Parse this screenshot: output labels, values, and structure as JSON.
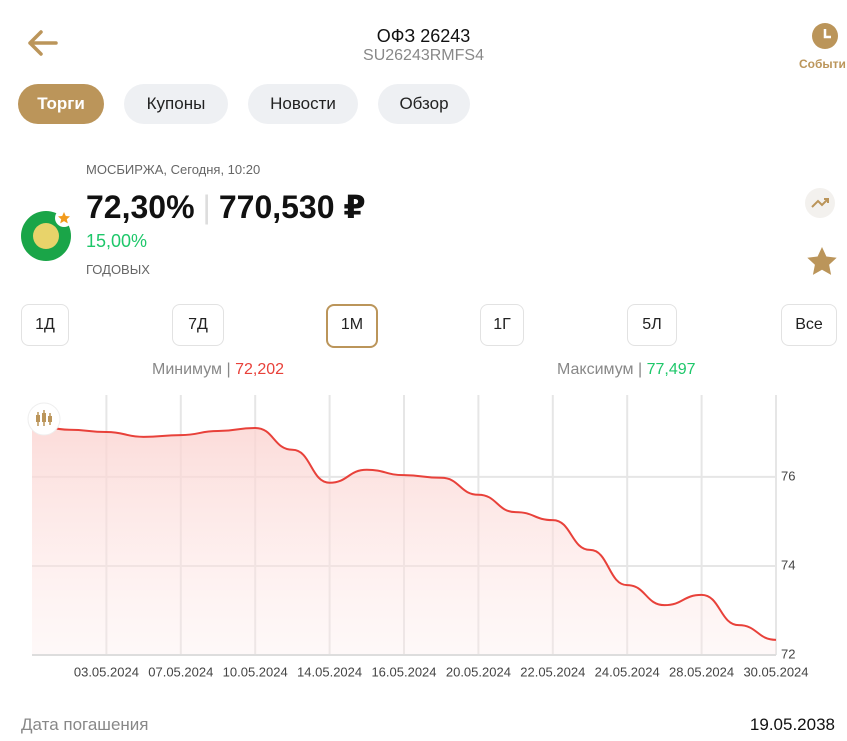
{
  "header": {
    "title": "ОФЗ 26243",
    "subtitle": "SU26243RMFS4",
    "events": "Событи"
  },
  "tabs": [
    "Торги",
    "Купоны",
    "Новости",
    "Обзор"
  ],
  "quote": {
    "source": "МОСБИРЖА, Сегодня, 10:20",
    "price_pct": "72,30%",
    "price_rub": "770,530 ₽",
    "yield": "15,00%",
    "yield_label": "ГОДОВЫХ"
  },
  "periods": [
    "1Д",
    "7Д",
    "1М",
    "1Г",
    "5Л",
    "Все"
  ],
  "range": {
    "min_label": "Минимум",
    "min": "72,202",
    "max_label": "Максимум",
    "max": "77,497"
  },
  "chart_data": {
    "type": "line",
    "color": "#e8413a",
    "categories": [
      null,
      null,
      "03.05.2024",
      null,
      "07.05.2024",
      null,
      "10.05.2024",
      null,
      "14.05.2024",
      null,
      "16.05.2024",
      null,
      "20.05.2024",
      null,
      "22.05.2024",
      null,
      "24.05.2024",
      null,
      "28.05.2024",
      null,
      "30.05.2024"
    ],
    "values": [
      77.17,
      77.06,
      77.01,
      76.9,
      76.94,
      77.03,
      77.1,
      76.61,
      75.87,
      76.16,
      76.04,
      75.98,
      75.6,
      75.21,
      75.03,
      74.36,
      73.57,
      73.12,
      73.35,
      72.67,
      72.34
    ],
    "ylim": [
      72,
      77.84
    ],
    "yticks": [
      72,
      74,
      76
    ],
    "grid": true
  },
  "footer": {
    "label": "Дата погашения",
    "value": "19.05.2038"
  }
}
